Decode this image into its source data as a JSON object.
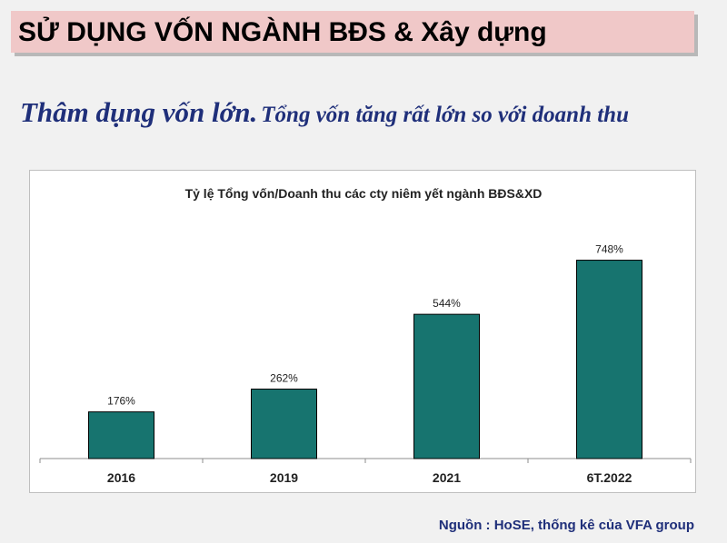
{
  "header": {
    "title": "SỬ DỤNG VỐN NGÀNH BĐS & Xây dựng"
  },
  "subtitle": {
    "lead": "Thâm dụng vốn lớn.",
    "rest": "Tổng vốn tăng rất lớn so với doanh thu"
  },
  "colors": {
    "bar": "#17746f",
    "title_bg": "#f0c8c8",
    "subtitle": "#1f2f7a"
  },
  "chart_data": {
    "type": "bar",
    "title": "Tỷ lệ Tổng vốn/Doanh thu các cty niêm yết ngành BĐS&XD",
    "categories": [
      "2016",
      "2019",
      "2021",
      "6T.2022"
    ],
    "values": [
      176,
      262,
      544,
      748
    ],
    "labels": [
      "176%",
      "262%",
      "544%",
      "748%"
    ],
    "xlabel": "",
    "ylabel": "",
    "ylim": [
      0,
      880
    ],
    "grid": false,
    "legend": "none"
  },
  "footer": {
    "source": "Nguồn : HoSE, thống kê của VFA group"
  }
}
